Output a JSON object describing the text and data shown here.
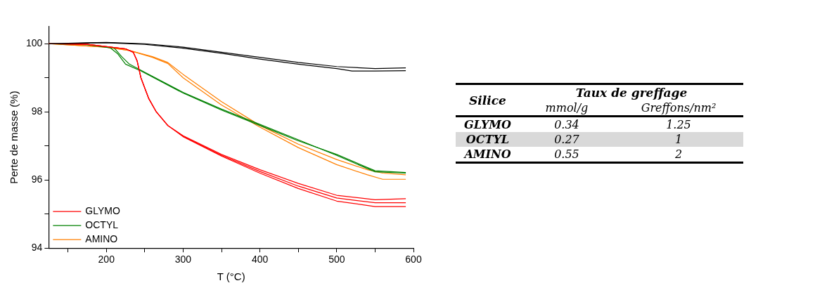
{
  "chart_data": [
    {
      "type": "line",
      "xlabel": "T (°C)",
      "ylabel": "Perte de masse (%)",
      "xlim": [
        125,
        600
      ],
      "ylim": [
        94,
        100.5
      ],
      "xticks": [
        {
          "value": 150,
          "label": null
        },
        200,
        {
          "value": 250,
          "label": null
        },
        300,
        {
          "value": 350,
          "label": null
        },
        400,
        {
          "value": 450,
          "label": null
        },
        500,
        {
          "value": 550,
          "label": null
        },
        600
      ],
      "yticks": [
        94,
        {
          "value": 95,
          "label": null
        },
        96,
        {
          "value": 97,
          "label": null
        },
        98,
        {
          "value": 99,
          "label": null
        },
        100
      ],
      "grid": false,
      "legend": "bottom left",
      "marker": "none",
      "line_style": "solid",
      "series": [
        {
          "color": "#000000",
          "x": [
            125,
            175,
            200,
            250,
            300,
            350,
            400,
            450,
            500,
            550,
            590
          ],
          "values": [
            100,
            100.03,
            100.04,
            100.0,
            99.9,
            99.75,
            99.6,
            99.45,
            99.33,
            99.27,
            99.29
          ]
        },
        {
          "color": "#000000",
          "x": [
            125,
            175,
            200,
            250,
            300,
            350,
            400,
            450,
            500,
            520,
            550,
            590
          ],
          "values": [
            100,
            100.02,
            100.03,
            99.98,
            99.87,
            99.72,
            99.55,
            99.4,
            99.27,
            99.2,
            99.2,
            99.21
          ]
        },
        {
          "name": "GLYMO",
          "color": "#ff0000",
          "x": [
            125,
            175,
            225,
            235,
            240,
            245,
            255,
            265,
            280,
            300,
            350,
            400,
            450,
            500,
            550,
            590
          ],
          "values": [
            100,
            99.98,
            99.85,
            99.75,
            99.5,
            99.0,
            98.4,
            98.0,
            97.6,
            97.3,
            96.75,
            96.3,
            95.9,
            95.55,
            95.42,
            95.45
          ]
        },
        {
          "color": "#ff0000",
          "x": [
            125,
            175,
            225,
            235,
            240,
            245,
            255,
            265,
            280,
            300,
            350,
            400,
            450,
            500,
            550,
            590
          ],
          "values": [
            100,
            99.98,
            99.85,
            99.75,
            99.5,
            99.0,
            98.4,
            98.0,
            97.6,
            97.28,
            96.72,
            96.25,
            95.82,
            95.47,
            95.33,
            95.33
          ]
        },
        {
          "color": "#ff0000",
          "x": [
            125,
            175,
            225,
            235,
            240,
            245,
            255,
            265,
            280,
            300,
            350,
            400,
            450,
            500,
            550,
            590
          ],
          "values": [
            100,
            99.98,
            99.85,
            99.75,
            99.5,
            99.0,
            98.4,
            98.0,
            97.6,
            97.27,
            96.7,
            96.2,
            95.75,
            95.38,
            95.22,
            95.22
          ]
        },
        {
          "name": "OCTYL",
          "color": "#008000",
          "x": [
            125,
            175,
            205,
            215,
            225,
            245,
            300,
            350,
            400,
            450,
            500,
            550,
            590
          ],
          "values": [
            100,
            99.97,
            99.88,
            99.7,
            99.4,
            99.2,
            98.55,
            98.05,
            97.6,
            97.15,
            96.75,
            96.27,
            96.22
          ]
        },
        {
          "color": "#008000",
          "x": [
            128,
            175,
            210,
            220,
            230,
            245,
            300,
            350,
            400,
            450,
            500,
            550,
            590
          ],
          "values": [
            100,
            99.97,
            99.88,
            99.62,
            99.4,
            99.22,
            98.57,
            98.08,
            97.63,
            97.18,
            96.72,
            96.24,
            96.2
          ]
        },
        {
          "name": "AMINO",
          "color": "#ff7f00",
          "x": [
            125,
            200,
            230,
            260,
            280,
            300,
            350,
            400,
            450,
            500,
            540,
            560,
            590
          ],
          "values": [
            100,
            99.9,
            99.8,
            99.62,
            99.45,
            99.1,
            98.3,
            97.6,
            97.05,
            96.6,
            96.3,
            96.2,
            96.15
          ]
        },
        {
          "color": "#ff7f00",
          "x": [
            125,
            200,
            230,
            260,
            280,
            300,
            350,
            400,
            450,
            500,
            540,
            560,
            590
          ],
          "values": [
            100,
            99.9,
            99.8,
            99.6,
            99.42,
            99.0,
            98.2,
            97.55,
            96.95,
            96.45,
            96.15,
            96.02,
            96.02
          ]
        }
      ]
    },
    {
      "type": "other",
      "title": "Taux de greffage",
      "ylabel": "Silice",
      "categories": [
        "mmol/g",
        "Greffons/nm²"
      ],
      "y_categories": [
        "GLYMO",
        "OCTYL",
        "AMINO"
      ],
      "cell_labels": [
        [
          "0.34",
          "1.25"
        ],
        [
          "0.27",
          "1"
        ],
        [
          "0.55",
          "2"
        ]
      ],
      "colors": [
        "#ffffff",
        "#d9d9d9",
        "#ffffff"
      ]
    }
  ]
}
